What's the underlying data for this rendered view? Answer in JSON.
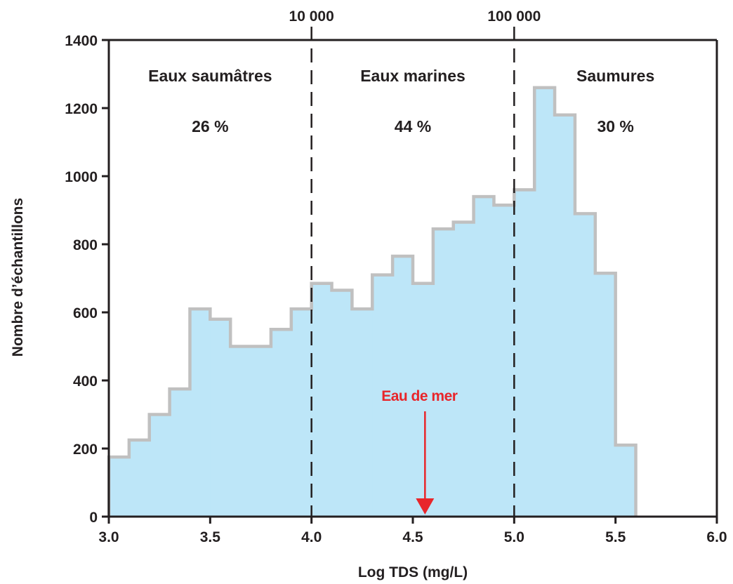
{
  "chart_data": {
    "type": "bar",
    "xlabel": "Log TDS (mg/L)",
    "ylabel": "Nombre d’échantillons",
    "xlim": [
      3.0,
      6.0
    ],
    "ylim": [
      0,
      1400
    ],
    "x_ticks": [
      "3.0",
      "3.5",
      "4.0",
      "4.5",
      "5.0",
      "5.5",
      "6.0"
    ],
    "y_ticks": [
      "0",
      "200",
      "400",
      "600",
      "800",
      "1000",
      "1200",
      "1400"
    ],
    "bin_width": 0.1,
    "bins": [
      {
        "x": 3.0,
        "value": 175
      },
      {
        "x": 3.1,
        "value": 225
      },
      {
        "x": 3.2,
        "value": 300
      },
      {
        "x": 3.3,
        "value": 375
      },
      {
        "x": 3.4,
        "value": 610
      },
      {
        "x": 3.5,
        "value": 580
      },
      {
        "x": 3.6,
        "value": 500
      },
      {
        "x": 3.7,
        "value": 500
      },
      {
        "x": 3.8,
        "value": 550
      },
      {
        "x": 3.9,
        "value": 610
      },
      {
        "x": 4.0,
        "value": 685
      },
      {
        "x": 4.1,
        "value": 665
      },
      {
        "x": 4.2,
        "value": 610
      },
      {
        "x": 4.3,
        "value": 710
      },
      {
        "x": 4.4,
        "value": 765
      },
      {
        "x": 4.5,
        "value": 685
      },
      {
        "x": 4.6,
        "value": 845
      },
      {
        "x": 4.7,
        "value": 865
      },
      {
        "x": 4.8,
        "value": 940
      },
      {
        "x": 4.9,
        "value": 915
      },
      {
        "x": 5.0,
        "value": 960
      },
      {
        "x": 5.1,
        "value": 1260
      },
      {
        "x": 5.2,
        "value": 1180
      },
      {
        "x": 5.3,
        "value": 890
      },
      {
        "x": 5.4,
        "value": 715
      },
      {
        "x": 5.5,
        "value": 210
      }
    ],
    "dividers": [
      {
        "x": 4.0,
        "label": "10 000"
      },
      {
        "x": 5.0,
        "label": "100 000"
      }
    ],
    "regions": [
      {
        "name": "Eaux saumâtres",
        "percent": "26 %",
        "x_center": 3.5
      },
      {
        "name": "Eaux marines",
        "percent": "44 %",
        "x_center": 4.5
      },
      {
        "name": "Saumures",
        "percent": "30 %",
        "x_center": 5.5
      }
    ],
    "annotation": {
      "label": "Eau de mer",
      "x": 4.56
    },
    "colors": {
      "fill": "#bde6f8",
      "outline": "#c0c0c0",
      "axis": "#231f20",
      "annotation": "#e8262b"
    }
  }
}
